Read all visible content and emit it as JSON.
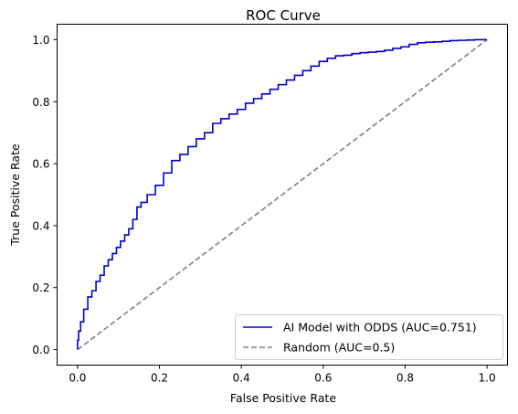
{
  "chart_data": {
    "type": "line",
    "title": "ROC Curve",
    "xlabel": "False Positive Rate",
    "ylabel": "True Positive Rate",
    "xlim": [
      -0.05,
      1.05
    ],
    "ylim": [
      -0.05,
      1.05
    ],
    "x_ticks": [
      "0.0",
      "0.2",
      "0.4",
      "0.6",
      "0.8",
      "1.0"
    ],
    "y_ticks": [
      "0.0",
      "0.2",
      "0.4",
      "0.6",
      "0.8",
      "1.0"
    ],
    "x_tick_values": [
      0,
      0.2,
      0.4,
      0.6,
      0.8,
      1.0
    ],
    "y_tick_values": [
      0,
      0.2,
      0.4,
      0.6,
      0.8,
      1.0
    ],
    "grid": false,
    "legend_position": "lower right",
    "series": [
      {
        "name": "AI Model with ODDS (AUC=0.751)",
        "color": "#0000cd",
        "style": "solid",
        "points": [
          [
            0.0,
            0.0
          ],
          [
            0.0,
            0.03
          ],
          [
            0.005,
            0.06
          ],
          [
            0.01,
            0.09
          ],
          [
            0.02,
            0.13
          ],
          [
            0.03,
            0.17
          ],
          [
            0.04,
            0.19
          ],
          [
            0.05,
            0.22
          ],
          [
            0.06,
            0.24
          ],
          [
            0.07,
            0.27
          ],
          [
            0.08,
            0.29
          ],
          [
            0.09,
            0.31
          ],
          [
            0.1,
            0.33
          ],
          [
            0.11,
            0.35
          ],
          [
            0.12,
            0.37
          ],
          [
            0.13,
            0.39
          ],
          [
            0.14,
            0.42
          ],
          [
            0.15,
            0.46
          ],
          [
            0.16,
            0.475
          ],
          [
            0.18,
            0.5
          ],
          [
            0.2,
            0.53
          ],
          [
            0.22,
            0.57
          ],
          [
            0.24,
            0.61
          ],
          [
            0.26,
            0.63
          ],
          [
            0.28,
            0.655
          ],
          [
            0.3,
            0.68
          ],
          [
            0.32,
            0.7
          ],
          [
            0.34,
            0.73
          ],
          [
            0.36,
            0.745
          ],
          [
            0.38,
            0.76
          ],
          [
            0.4,
            0.775
          ],
          [
            0.42,
            0.795
          ],
          [
            0.44,
            0.81
          ],
          [
            0.46,
            0.825
          ],
          [
            0.48,
            0.84
          ],
          [
            0.5,
            0.855
          ],
          [
            0.52,
            0.87
          ],
          [
            0.54,
            0.885
          ],
          [
            0.56,
            0.9
          ],
          [
            0.58,
            0.915
          ],
          [
            0.6,
            0.93
          ],
          [
            0.62,
            0.94
          ],
          [
            0.64,
            0.948
          ],
          [
            0.66,
            0.95
          ],
          [
            0.68,
            0.955
          ],
          [
            0.7,
            0.958
          ],
          [
            0.72,
            0.96
          ],
          [
            0.74,
            0.962
          ],
          [
            0.76,
            0.966
          ],
          [
            0.78,
            0.972
          ],
          [
            0.8,
            0.977
          ],
          [
            0.82,
            0.985
          ],
          [
            0.84,
            0.99
          ],
          [
            0.86,
            0.992
          ],
          [
            0.88,
            0.993
          ],
          [
            0.9,
            0.995
          ],
          [
            0.92,
            0.997
          ],
          [
            0.94,
            0.998
          ],
          [
            0.96,
            0.999
          ],
          [
            0.98,
            1.0
          ],
          [
            1.0,
            1.0
          ]
        ]
      },
      {
        "name": "Random (AUC=0.5)",
        "color": "#808080",
        "style": "dashed",
        "points": [
          [
            0,
            0
          ],
          [
            1,
            1
          ]
        ]
      }
    ]
  }
}
